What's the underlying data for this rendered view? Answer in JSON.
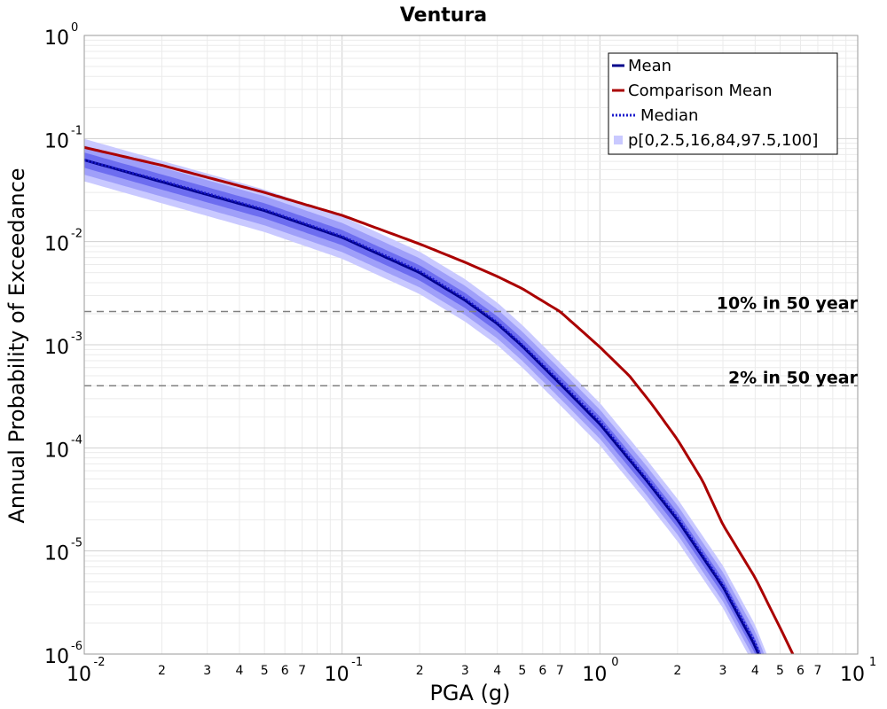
{
  "chart_data": {
    "type": "line",
    "title": "Ventura",
    "xlabel": "PGA (g)",
    "ylabel": "Annual Probability of Exceedance",
    "xscale": "log",
    "yscale": "log",
    "xlim": [
      0.01,
      10
    ],
    "ylim": [
      1e-06,
      1
    ],
    "grid": true,
    "legend_position": "top-right",
    "x_major_ticks": [
      {
        "base": "10",
        "exp": "-2",
        "value": 0.01
      },
      {
        "base": "10",
        "exp": "-1",
        "value": 0.1
      },
      {
        "base": "10",
        "exp": "0",
        "value": 1
      },
      {
        "base": "10",
        "exp": "1",
        "value": 10
      }
    ],
    "y_major_ticks": [
      {
        "base": "10",
        "exp": "0",
        "value": 1
      },
      {
        "base": "10",
        "exp": "-1",
        "value": 0.1
      },
      {
        "base": "10",
        "exp": "-2",
        "value": 0.01
      },
      {
        "base": "10",
        "exp": "-3",
        "value": 0.001
      },
      {
        "base": "10",
        "exp": "-4",
        "value": 0.0001
      },
      {
        "base": "10",
        "exp": "-5",
        "value": 1e-05
      },
      {
        "base": "10",
        "exp": "-6",
        "value": 1e-06
      }
    ],
    "x_minor_tick_labels": [
      "2",
      "3",
      "4",
      "5",
      "6",
      "7"
    ],
    "x": [
      0.01,
      0.02,
      0.05,
      0.1,
      0.2,
      0.3,
      0.4,
      0.5,
      0.7,
      1.0,
      1.5,
      2.0,
      3.0,
      4.0,
      4.6
    ],
    "series": [
      {
        "name": "Mean",
        "color": "#00008b",
        "style": "solid",
        "values": [
          0.062,
          0.038,
          0.02,
          0.011,
          0.005,
          0.0027,
          0.0016,
          0.00097,
          0.00042,
          0.00017,
          5e-05,
          2e-05,
          4.5e-06,
          1.2e-06,
          5e-07
        ]
      },
      {
        "name": "Median",
        "color": "#00008b",
        "style": "dotted",
        "values": [
          0.062,
          0.039,
          0.0205,
          0.0113,
          0.0052,
          0.0028,
          0.00165,
          0.001,
          0.00044,
          0.00018,
          5.2e-05,
          2.1e-05,
          4.7e-06,
          1.3e-06,
          5.5e-07
        ]
      },
      {
        "name": "Comparison Mean",
        "color": "#aa0000",
        "style": "solid",
        "x": [
          0.01,
          0.02,
          0.05,
          0.1,
          0.2,
          0.3,
          0.4,
          0.5,
          0.7,
          1.0,
          1.3,
          1.6,
          2.0,
          2.5,
          3.0,
          4.0,
          5.0,
          5.6
        ],
        "values": [
          0.082,
          0.055,
          0.03,
          0.018,
          0.0095,
          0.0063,
          0.0046,
          0.0035,
          0.0021,
          0.00095,
          0.0005,
          0.00026,
          0.00012,
          4.8e-05,
          1.8e-05,
          5.5e-06,
          1.8e-06,
          1e-06
        ]
      }
    ],
    "band_series_name": "p[0,2.5,16,84,97.5,100]",
    "bands": {
      "p0_p100": {
        "lower_factor": 0.62,
        "upper_factor": 1.6,
        "color": "#c9c9ff"
      },
      "p2_5_p97_5": {
        "lower_factor": 0.72,
        "upper_factor": 1.38,
        "color": "#9f9ff9"
      },
      "p16_p84": {
        "lower_factor": 0.84,
        "upper_factor": 1.18,
        "color": "#6d6df0"
      }
    },
    "hlines": [
      {
        "label": "10% in 50 year",
        "y": 0.0021,
        "color": "#808080",
        "style": "dashed"
      },
      {
        "label": "2% in 50 year",
        "y": 0.0004,
        "color": "#808080",
        "style": "dashed"
      }
    ],
    "legend": [
      {
        "label": "Mean",
        "kind": "line",
        "color": "#00008b",
        "style": "solid"
      },
      {
        "label": "Comparison Mean",
        "kind": "line",
        "color": "#aa0000",
        "style": "solid"
      },
      {
        "label": "Median",
        "kind": "line",
        "color": "#00008b",
        "style": "dotted"
      },
      {
        "label": "p[0,2.5,16,84,97.5,100]",
        "kind": "square",
        "color": "#c9c9ff"
      }
    ]
  }
}
